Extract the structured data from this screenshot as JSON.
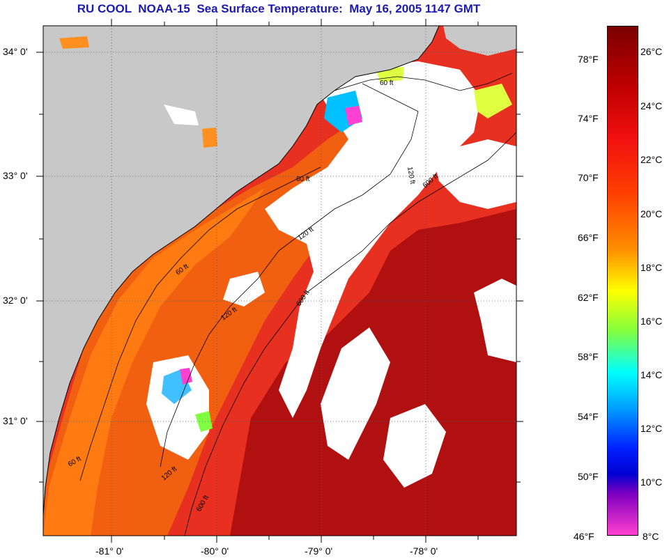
{
  "title": "RU COOL  NOAA-15  Sea Surface Temperature:  May 16, 2005 1147 GMT",
  "map": {
    "lat_labels": [
      "34° 0'",
      "33° 0'",
      "32° 0'",
      "31° 0'"
    ],
    "lon_labels": [
      "-81° 0'",
      "-80° 0'",
      "-79° 0'",
      "-78° 0'"
    ],
    "isobath_labels": [
      "60 ft",
      "120 ft",
      "600 ft"
    ]
  },
  "colorbar": {
    "fahrenheit_labels": [
      "78°F",
      "74°F",
      "70°F",
      "66°F",
      "62°F",
      "58°F",
      "54°F",
      "50°F",
      "46°F"
    ],
    "celsius_labels": [
      "26°C",
      "24°C",
      "22°C",
      "20°C",
      "18°C",
      "16°C",
      "14°C",
      "12°C",
      "10°C",
      "8°C"
    ]
  },
  "colors": {
    "title": "#1a1ab0",
    "land": "#c8c8c8",
    "warm_sst": "#e83020",
    "hot_sst": "#b01010",
    "shelf_sst": "#f06010",
    "cloud": "#ffffff"
  }
}
